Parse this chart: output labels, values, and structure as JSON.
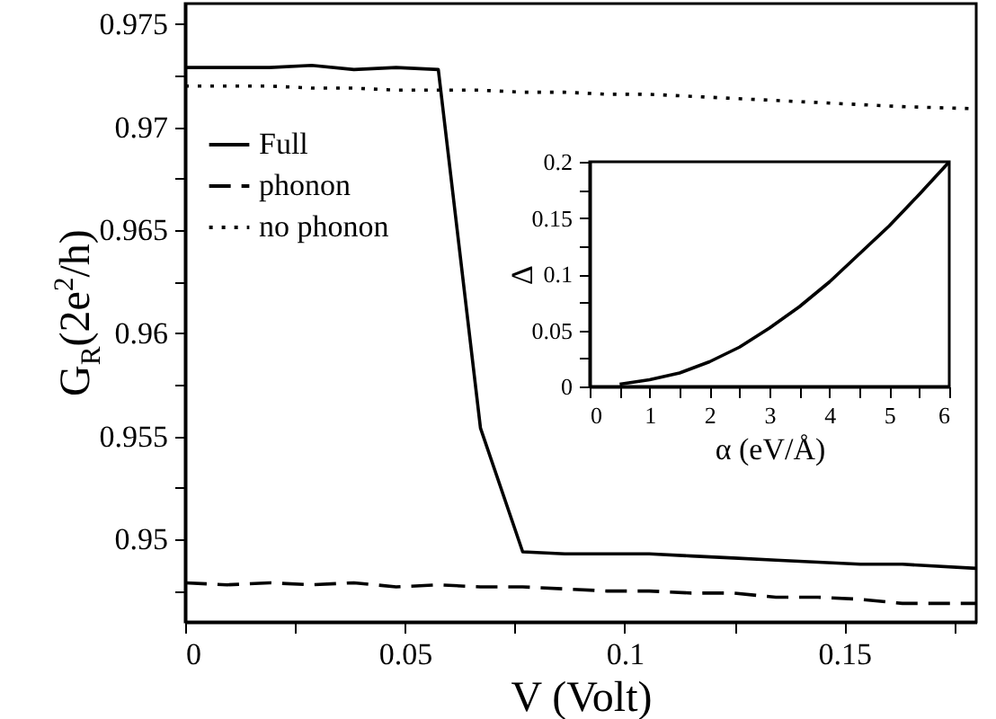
{
  "chart_data": [
    {
      "type": "line",
      "xlabel": "V (Volt)",
      "ylabel": "G$_{R}$(2e$^{2}$/h)",
      "x": [
        0,
        0.0096,
        0.0192,
        0.0288,
        0.0384,
        0.048,
        0.0576,
        0.0672,
        0.0768,
        0.0864,
        0.096,
        0.1056,
        0.1152,
        0.1248,
        0.1344,
        0.144,
        0.1536,
        0.1632,
        0.18
      ],
      "series": [
        {
          "name": "Full",
          "color": "#000000",
          "line_style": "solid",
          "values": [
            0.9729,
            0.9729,
            0.9729,
            0.973,
            0.9728,
            0.9729,
            0.9728,
            0.9554,
            0.9494,
            0.9493,
            0.9493,
            0.9493,
            0.9492,
            0.9491,
            0.949,
            0.9489,
            0.9488,
            0.9488,
            0.9486
          ]
        },
        {
          "name": "phonon",
          "color": "#000000",
          "line_style": "dashed",
          "values": [
            0.9479,
            0.9478,
            0.9479,
            0.9478,
            0.9479,
            0.9477,
            0.9478,
            0.9477,
            0.9477,
            0.9476,
            0.9475,
            0.9475,
            0.9474,
            0.9474,
            0.9472,
            0.9472,
            0.9471,
            0.9469,
            0.9469
          ]
        },
        {
          "name": "no phonon",
          "color": "#000000",
          "line_style": "dotted",
          "values": [
            0.972,
            0.972,
            0.972,
            0.9719,
            0.9719,
            0.9718,
            0.9718,
            0.9718,
            0.9717,
            0.9717,
            0.9716,
            0.9716,
            0.9715,
            0.9714,
            0.9713,
            0.9712,
            0.9711,
            0.971,
            0.9709
          ]
        }
      ],
      "xlim": [
        0,
        0.18
      ],
      "xticks": [
        0,
        {
          "value": 0.025,
          "label": null
        },
        0.05,
        {
          "value": 0.075,
          "label": null
        },
        0.1,
        {
          "value": 0.125,
          "label": null
        },
        0.15,
        {
          "value": 0.175,
          "label": null
        }
      ],
      "ylim": [
        0.946,
        0.976
      ],
      "yticks": [
        {
          "value": 0.9475,
          "label": null
        },
        0.95,
        {
          "value": 0.9525,
          "label": null
        },
        0.955,
        {
          "value": 0.9575,
          "label": null
        },
        0.96,
        {
          "value": 0.9625,
          "label": null
        },
        0.965,
        {
          "value": 0.9675,
          "label": null
        },
        0.97,
        {
          "value": 0.9725,
          "label": null
        },
        0.975
      ],
      "legend": "top left",
      "grid": false
    },
    {
      "type": "line",
      "xlabel": "α (eV/Å)",
      "ylabel": "Δ",
      "x": [
        0.5,
        1,
        1.5,
        2,
        2.5,
        3,
        3.5,
        4,
        4.5,
        5,
        5.5,
        6
      ],
      "values": [
        0.002,
        0.006,
        0.012,
        0.022,
        0.035,
        0.052,
        0.071,
        0.093,
        0.118,
        0.143,
        0.171,
        0.2
      ],
      "color": "#000000",
      "xlim": [
        0,
        6
      ],
      "xticks": [
        0,
        {
          "value": 0.5,
          "label": null
        },
        1,
        {
          "value": 1.5,
          "label": null
        },
        2,
        {
          "value": 2.5,
          "label": null
        },
        3,
        {
          "value": 3.5,
          "label": null
        },
        4,
        {
          "value": 4.5,
          "label": null
        },
        5,
        {
          "value": 5.5,
          "label": null
        },
        6
      ],
      "ylim": [
        0,
        0.2
      ],
      "yticks": [
        0,
        {
          "value": 0.025,
          "label": null
        },
        0.05,
        {
          "value": 0.075,
          "label": null
        },
        0.1,
        {
          "value": 0.125,
          "label": null
        },
        0.15,
        {
          "value": 0.175,
          "label": null
        },
        0.2
      ],
      "grid": false
    }
  ]
}
